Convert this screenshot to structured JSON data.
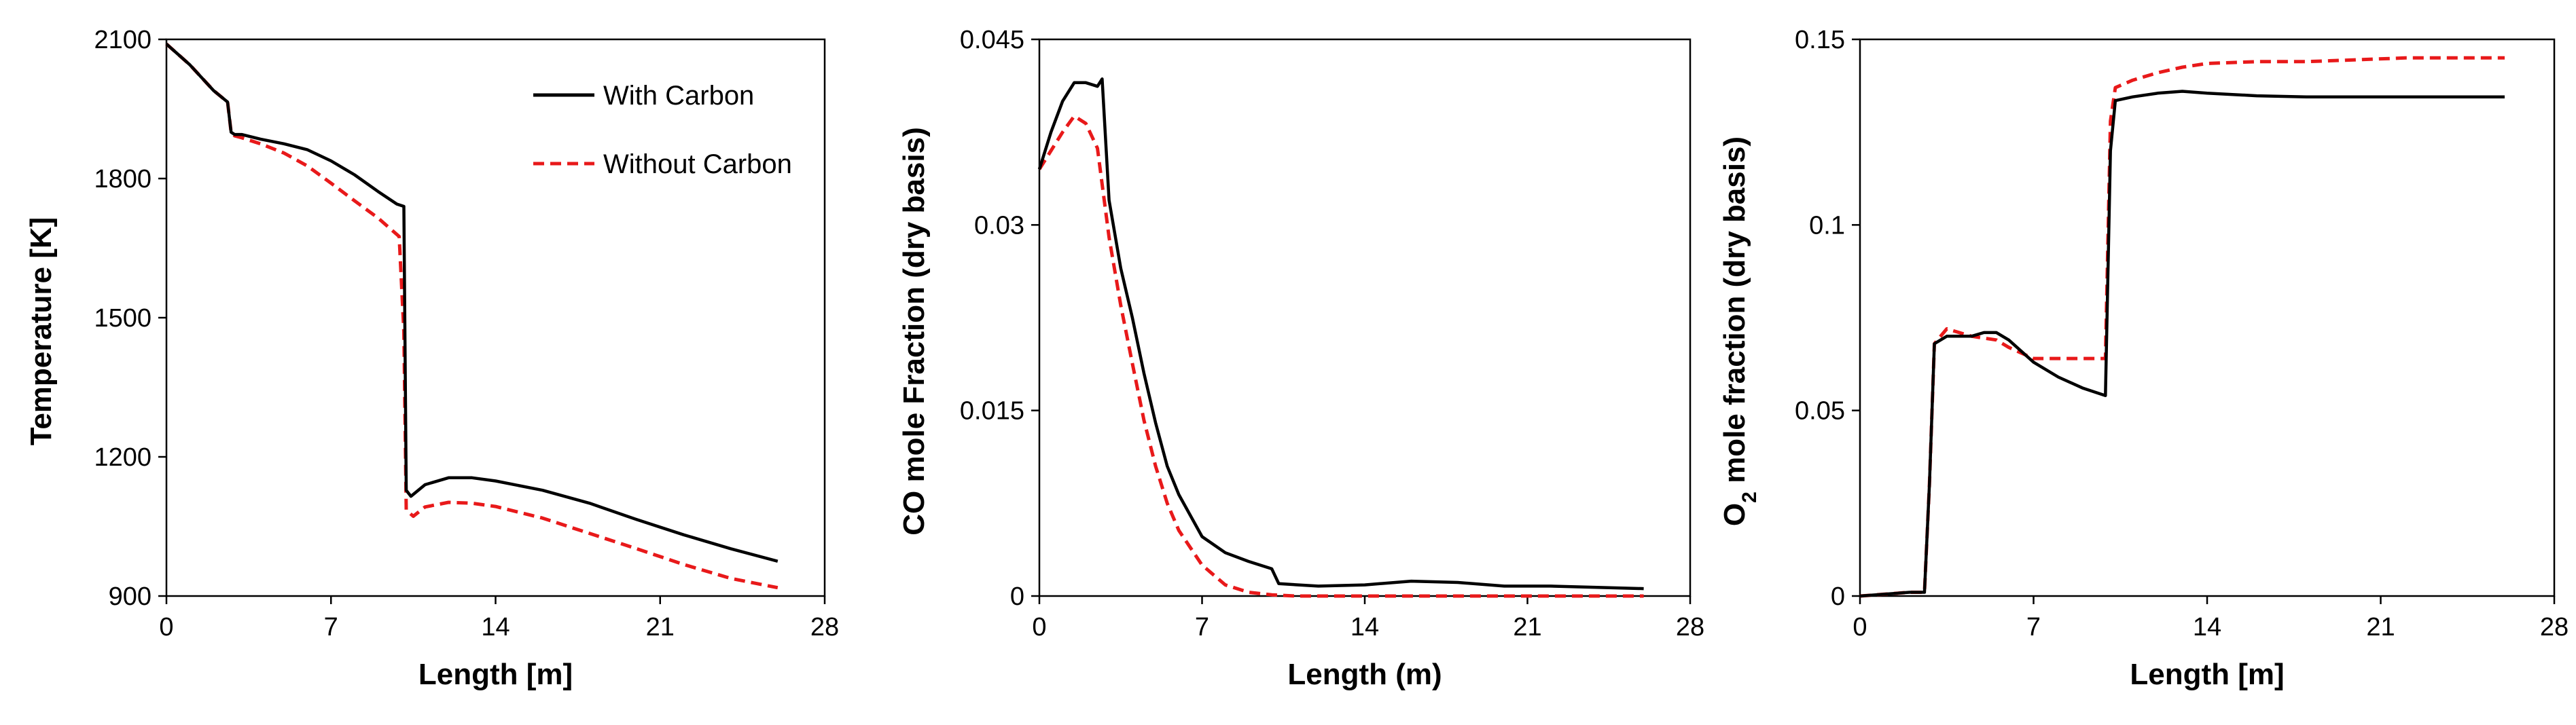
{
  "colors": {
    "with_carbon": "#000000",
    "without_carbon": "#e8191a",
    "axis": "#000000"
  },
  "legend": {
    "with_carbon": "With Carbon",
    "without_carbon": "Without Carbon",
    "placement": "top-right"
  },
  "chart_data": [
    {
      "type": "line",
      "title": "",
      "xlabel": "Length [m]",
      "ylabel": "Temperature [K]",
      "ylabel_sub": "",
      "ylabel_rest": "",
      "xlim": [
        0,
        28
      ],
      "ylim": [
        900,
        2100
      ],
      "xticks": [
        0,
        7,
        14,
        21,
        28
      ],
      "yticks": [
        900,
        1200,
        1500,
        1800,
        2100
      ],
      "ytick_labels": [
        "900",
        "1200",
        "1500",
        "1800",
        "2100"
      ],
      "grid": false,
      "series": [
        {
          "name": "With Carbon",
          "style": "solid",
          "x": [
            0,
            1,
            2,
            2.6,
            2.75,
            2.9,
            3.2,
            4,
            5,
            6,
            7,
            8,
            9,
            9.8,
            10.1,
            10.2,
            10.4,
            11,
            12,
            13,
            14,
            16,
            18,
            20,
            22,
            24,
            26
          ],
          "y": [
            2090,
            2045,
            1990,
            1965,
            1900,
            1895,
            1895,
            1885,
            1875,
            1862,
            1838,
            1808,
            1772,
            1745,
            1740,
            1128,
            1115,
            1140,
            1155,
            1155,
            1148,
            1128,
            1100,
            1065,
            1032,
            1002,
            975
          ]
        },
        {
          "name": "Without Carbon",
          "style": "dashed",
          "x": [
            0,
            1,
            2,
            2.6,
            2.75,
            2.9,
            3.2,
            4,
            5,
            6,
            7,
            8,
            9,
            9.9,
            10.1,
            10.2,
            10.5,
            11,
            12,
            13,
            14,
            16,
            18,
            20,
            22,
            24,
            26
          ],
          "y": [
            2090,
            2045,
            1990,
            1965,
            1900,
            1892,
            1888,
            1875,
            1855,
            1827,
            1790,
            1752,
            1715,
            1675,
            1470,
            1085,
            1072,
            1092,
            1102,
            1100,
            1093,
            1068,
            1035,
            1002,
            968,
            938,
            918
          ]
        }
      ]
    },
    {
      "type": "line",
      "title": "",
      "xlabel": "Length (m)",
      "ylabel": "CO mole Fraction (dry basis)",
      "ylabel_sub": "",
      "ylabel_rest": "",
      "xlim": [
        0,
        28
      ],
      "ylim": [
        0,
        0.045
      ],
      "xticks": [
        0,
        7,
        14,
        21,
        28
      ],
      "yticks": [
        0,
        0.015,
        0.03,
        0.045
      ],
      "ytick_labels": [
        "0",
        "0.015",
        "0.03",
        "0.045"
      ],
      "grid": false,
      "series": [
        {
          "name": "With Carbon",
          "style": "solid",
          "x": [
            0,
            0.5,
            1,
            1.5,
            2,
            2.5,
            2.7,
            3,
            3.5,
            4,
            4.5,
            5,
            5.5,
            6,
            7,
            8,
            9,
            10,
            10.3,
            12,
            14,
            16,
            18,
            20,
            22,
            24,
            26
          ],
          "y": [
            0.0345,
            0.0375,
            0.04,
            0.0415,
            0.0415,
            0.0412,
            0.0418,
            0.032,
            0.0265,
            0.0225,
            0.018,
            0.014,
            0.0105,
            0.0082,
            0.0048,
            0.0035,
            0.0028,
            0.0022,
            0.001,
            0.0008,
            0.0009,
            0.0012,
            0.0011,
            0.0008,
            0.0008,
            0.0007,
            0.0006
          ]
        },
        {
          "name": "Without Carbon",
          "style": "dashed",
          "x": [
            0,
            0.5,
            1,
            1.5,
            2,
            2.5,
            3,
            3.5,
            4,
            4.5,
            5,
            5.5,
            6,
            7,
            8,
            9,
            10,
            11,
            12,
            14,
            16,
            18,
            20,
            22,
            24,
            26
          ],
          "y": [
            0.0345,
            0.036,
            0.0375,
            0.0388,
            0.0382,
            0.0362,
            0.029,
            0.0235,
            0.0188,
            0.0142,
            0.0105,
            0.0075,
            0.0053,
            0.0025,
            0.0009,
            0.0003,
            0.0001,
            0,
            0,
            0,
            0,
            0,
            0,
            0,
            0,
            0
          ]
        }
      ]
    },
    {
      "type": "line",
      "title": "",
      "xlabel": "Length [m]",
      "ylabel": "O",
      "ylabel_sub": "2",
      "ylabel_rest": " mole fraction (dry basis)",
      "xlim": [
        0,
        28
      ],
      "ylim": [
        0,
        0.15
      ],
      "xticks": [
        0,
        7,
        14,
        21,
        28
      ],
      "yticks": [
        0,
        0.05,
        0.1,
        0.15
      ],
      "ytick_labels": [
        "0",
        "0.05",
        "0.1",
        "0.15"
      ],
      "grid": false,
      "series": [
        {
          "name": "With Carbon",
          "style": "solid",
          "x": [
            0,
            1,
            2,
            2.6,
            2.8,
            3.0,
            3.5,
            4,
            4.5,
            5,
            5.5,
            6,
            7,
            8,
            9,
            9.9,
            10.1,
            10.3,
            11,
            12,
            13,
            14,
            16,
            18,
            20,
            22,
            24,
            26
          ],
          "y": [
            0,
            0.0005,
            0.001,
            0.001,
            0.03,
            0.068,
            0.07,
            0.07,
            0.07,
            0.071,
            0.071,
            0.069,
            0.063,
            0.059,
            0.056,
            0.054,
            0.12,
            0.1335,
            0.1345,
            0.1355,
            0.136,
            0.1355,
            0.1348,
            0.1345,
            0.1345,
            0.1345,
            0.1345,
            0.1345
          ]
        },
        {
          "name": "Without Carbon",
          "style": "dashed",
          "x": [
            0,
            1,
            2,
            2.6,
            2.8,
            3.0,
            3.5,
            4,
            4.5,
            5,
            5.5,
            6,
            7,
            8,
            9,
            9.9,
            10.1,
            10.3,
            11,
            12,
            13,
            14,
            16,
            18,
            20,
            22,
            24,
            26
          ],
          "y": [
            0,
            0.0005,
            0.001,
            0.001,
            0.03,
            0.068,
            0.072,
            0.071,
            0.07,
            0.0695,
            0.069,
            0.067,
            0.064,
            0.064,
            0.064,
            0.064,
            0.128,
            0.137,
            0.139,
            0.141,
            0.1425,
            0.1435,
            0.144,
            0.144,
            0.1445,
            0.145,
            0.145,
            0.145
          ]
        }
      ]
    }
  ]
}
